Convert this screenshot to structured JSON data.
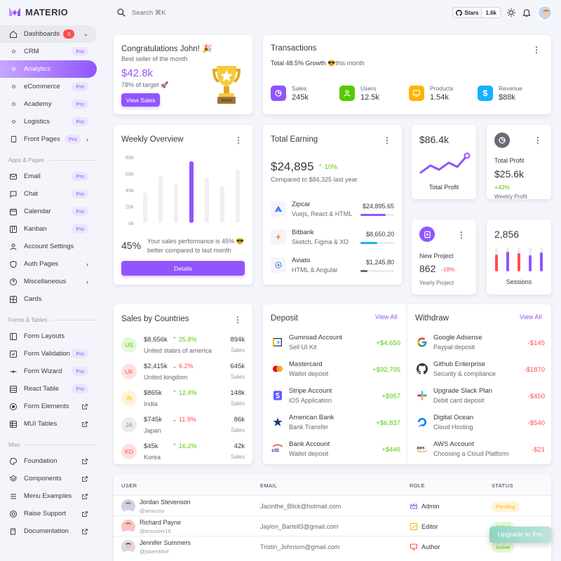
{
  "brand": {
    "name": "MATERIO"
  },
  "search": {
    "placeholder": "Search ⌘K"
  },
  "github": {
    "label": "Stars",
    "count": "1.6k"
  },
  "sidebar": {
    "dashboards": {
      "label": "Dashboards",
      "count": "5"
    },
    "dash_items": [
      {
        "label": "CRM",
        "badge": "Pro"
      },
      {
        "label": "Analytics"
      },
      {
        "label": "eCommerce",
        "badge": "Pro"
      },
      {
        "label": "Academy",
        "badge": "Pro"
      },
      {
        "label": "Logistics",
        "badge": "Pro"
      }
    ],
    "front_pages": {
      "label": "Front Pages",
      "badge": "Pro"
    },
    "sec_apps": "Apps & Pages",
    "apps": [
      {
        "label": "Email",
        "badge": "Pro"
      },
      {
        "label": "Chat",
        "badge": "Pro"
      },
      {
        "label": "Calendar",
        "badge": "Pro"
      },
      {
        "label": "Kanban",
        "badge": "Pro"
      },
      {
        "label": "Account Settings"
      },
      {
        "label": "Auth Pages"
      },
      {
        "label": "Miscellaneous"
      },
      {
        "label": "Cards"
      }
    ],
    "sec_forms": "Forms & Tables",
    "forms": [
      {
        "label": "Form Layouts"
      },
      {
        "label": "Form Validation",
        "badge": "Pro"
      },
      {
        "label": "Form Wizard",
        "badge": "Pro"
      },
      {
        "label": "React Table",
        "badge": "Pro"
      },
      {
        "label": "Form Elements"
      },
      {
        "label": "MUI Tables"
      }
    ],
    "sec_misc": "Misc",
    "misc": [
      {
        "label": "Foundation"
      },
      {
        "label": "Components"
      },
      {
        "label": "Menu Examples"
      },
      {
        "label": "Raise Support"
      },
      {
        "label": "Documentation"
      }
    ]
  },
  "congrats": {
    "title": "Congratulations John! 🎉",
    "subtitle": "Best seller of the month",
    "amount": "$42.8k",
    "target": "78% of target 🚀",
    "button": "View Sales"
  },
  "transactions": {
    "title": "Transactions",
    "growth_bold": "Total 48.5% Growth",
    "growth_rest": " 😎this month",
    "stats": [
      {
        "label": "Sales",
        "value": "245k",
        "color": "#9155fd"
      },
      {
        "label": "Users",
        "value": "12.5k",
        "color": "#56ca00"
      },
      {
        "label": "Products",
        "value": "1.54k",
        "color": "#ffb400"
      },
      {
        "label": "Revenue",
        "value": "$88k",
        "color": "#16b1ff"
      }
    ]
  },
  "weekly": {
    "title": "Weekly Overview",
    "percent": "45%",
    "text": "Your sales performance is 45% 😎 better compared to last month",
    "button": "Details",
    "chart_data": {
      "type": "bar",
      "ylim": [
        0,
        80
      ],
      "yticks": [
        "80k",
        "60k",
        "40k",
        "20k",
        "0k"
      ],
      "values": [
        37,
        57,
        47,
        75,
        55,
        45,
        65
      ],
      "highlight_index": 3
    }
  },
  "earning": {
    "title": "Total Earning",
    "amount": "$24,895",
    "change": "10%",
    "compare": "Compared to $84,325 last year",
    "items": [
      {
        "name": "Zipcar",
        "desc": "Vuejs, React & HTML",
        "amount": "$24,895.65",
        "progress": 0.75,
        "color": "#9155fd"
      },
      {
        "name": "Bitbank",
        "desc": "Sketch, Figma & XD",
        "amount": "$8,650.20",
        "progress": 0.5,
        "color": "#16b1ff"
      },
      {
        "name": "Aviato",
        "desc": "HTML & Angular",
        "amount": "$1,245.80",
        "progress": 0.2,
        "color": "#6d6777"
      }
    ]
  },
  "total_profit_chart": {
    "amount": "$86.4k",
    "label": "Total Profit"
  },
  "total_profit": {
    "title": "Total Profit",
    "amount": "$25.6k",
    "change": "+42%",
    "sub": "Weekly Profit"
  },
  "new_project": {
    "title": "New Project",
    "amount": "862",
    "change": "-18%",
    "sub": "Yearly Project"
  },
  "sessions": {
    "value": "2,856",
    "label": "Sessions"
  },
  "countries": {
    "title": "Sales by Countries",
    "rows": [
      {
        "code": "US",
        "amount": "$8,656k",
        "change": "25.8%",
        "dir": "up",
        "country": "United states of america",
        "sales": "894k",
        "sales_label": "Sales",
        "bg": "#e5f7d9",
        "fg": "#56ca00"
      },
      {
        "code": "UK",
        "amount": "$2,415k",
        "change": "6.2%",
        "dir": "down",
        "country": "United kingdom",
        "sales": "645k",
        "sales_label": "Sales",
        "bg": "#ffe0e1",
        "fg": "#ff4c51"
      },
      {
        "code": "IN",
        "amount": "$865k",
        "change": "12.4%",
        "dir": "up",
        "country": "India",
        "sales": "148k",
        "sales_label": "Sales",
        "bg": "#fff4d9",
        "fg": "#ffb400"
      },
      {
        "code": "JA",
        "amount": "$745k",
        "change": "11.9%",
        "dir": "down",
        "country": "Japan",
        "sales": "86k",
        "sales_label": "Sales",
        "bg": "#ececee",
        "fg": "#8a8d93"
      },
      {
        "code": "KO",
        "amount": "$45k",
        "change": "16.2%",
        "dir": "up",
        "country": "Korea",
        "sales": "42k",
        "sales_label": "Sales",
        "bg": "#ffe0e1",
        "fg": "#ff4c51"
      }
    ]
  },
  "deposit": {
    "title": "Deposit",
    "view_all": "View All",
    "rows": [
      {
        "name": "Gumroad Account",
        "desc": "Sell UI Kit",
        "amount": "+$4,650",
        "icon": "gumroad"
      },
      {
        "name": "Mastercard",
        "desc": "Wallet deposit",
        "amount": "+$92,705",
        "icon": "mastercard"
      },
      {
        "name": "Stripe Account",
        "desc": "iOS Application",
        "amount": "+$957",
        "icon": "stripe"
      },
      {
        "name": "American Bank",
        "desc": "Bank Transfer",
        "amount": "+$6,837",
        "icon": "american-bank"
      },
      {
        "name": "Bank Account",
        "desc": "Wallet deposit",
        "amount": "+$446",
        "icon": "citi"
      }
    ]
  },
  "withdraw": {
    "title": "Withdraw",
    "view_all": "View All",
    "rows": [
      {
        "name": "Google Adsense",
        "desc": "Paypal deposit",
        "amount": "-$145",
        "icon": "google"
      },
      {
        "name": "Github Enterprise",
        "desc": "Security & compliance",
        "amount": "-$1870",
        "icon": "github"
      },
      {
        "name": "Upgrade Slack Plan",
        "desc": "Debit card deposit",
        "amount": "-$450",
        "icon": "slack"
      },
      {
        "name": "Digital Ocean",
        "desc": "Cloud Hosting",
        "amount": "-$540",
        "icon": "digital-ocean"
      },
      {
        "name": "AWS Account",
        "desc": "Choosing a Cloud Platform",
        "amount": "-$21",
        "icon": "aws"
      }
    ]
  },
  "users_table": {
    "headers": [
      "USER",
      "EMAIL",
      "ROLE",
      "STATUS"
    ],
    "rows": [
      {
        "name": "Jordan Stevenson",
        "handle": "@amiccoo",
        "email": "Jacinthe_Blick@hotmail.com",
        "role": "Admin",
        "status": "Pending",
        "role_color": "#9155fd",
        "status_bg": "#fff4d9",
        "status_fg": "#ffb400"
      },
      {
        "name": "Richard Payne",
        "handle": "@brossiter15",
        "email": "Jaylon_Bartell3@gmail.com",
        "role": "Editor",
        "status": "Active",
        "role_color": "#ffb400",
        "status_bg": "#e5f7d9",
        "status_fg": "#56ca00"
      },
      {
        "name": "Jennifer Summers",
        "handle": "@jsbemblinf",
        "email": "Tristin_Johnson@gmail.com",
        "role": "Author",
        "status": "Active",
        "role_color": "#ff4c51",
        "status_bg": "#e5f7d9",
        "status_fg": "#56ca00"
      }
    ]
  },
  "upgrade": {
    "label": "Upgrade to Pro"
  }
}
